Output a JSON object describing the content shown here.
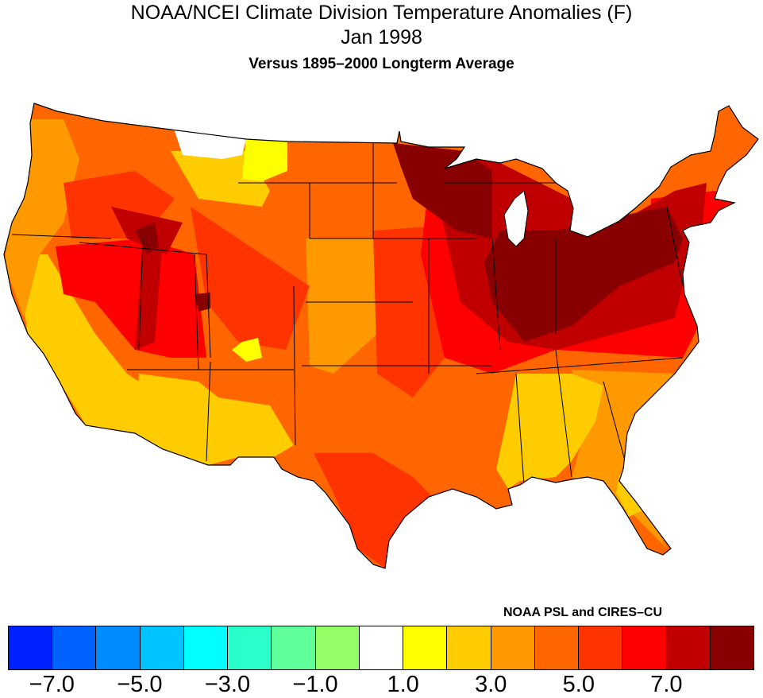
{
  "header": {
    "title": "NOAA/NCEI Climate Division Temperature Anomalies (F)",
    "month": "Jan 1998",
    "subtitle": "Versus 1895–2000 Longterm Average"
  },
  "credit": "NOAA PSL and CIRES–CU",
  "colors": {
    "base": "#ff6600",
    "gold": "#ffcc00",
    "orange": "#ff9900",
    "yellow": "#ffff00",
    "white": "#ffffff",
    "redorange": "#ff3300",
    "red": "#ff0000",
    "darkred": "#c00000",
    "darkest": "#880000"
  },
  "legend": {
    "bins": [
      "#0022ff",
      "#0062ff",
      "#008cff",
      "#00c4ff",
      "#00ffff",
      "#2affcc",
      "#5fff99",
      "#94ff66",
      "#ffffff",
      "#ffff00",
      "#ffcc00",
      "#ff9900",
      "#ff6600",
      "#ff3300",
      "#ff0000",
      "#c00000",
      "#880000"
    ],
    "labels": [
      "−7.0",
      "−5.0",
      "−3.0",
      "−1.0",
      "1.0",
      "3.0",
      "5.0",
      "7.0"
    ]
  }
}
